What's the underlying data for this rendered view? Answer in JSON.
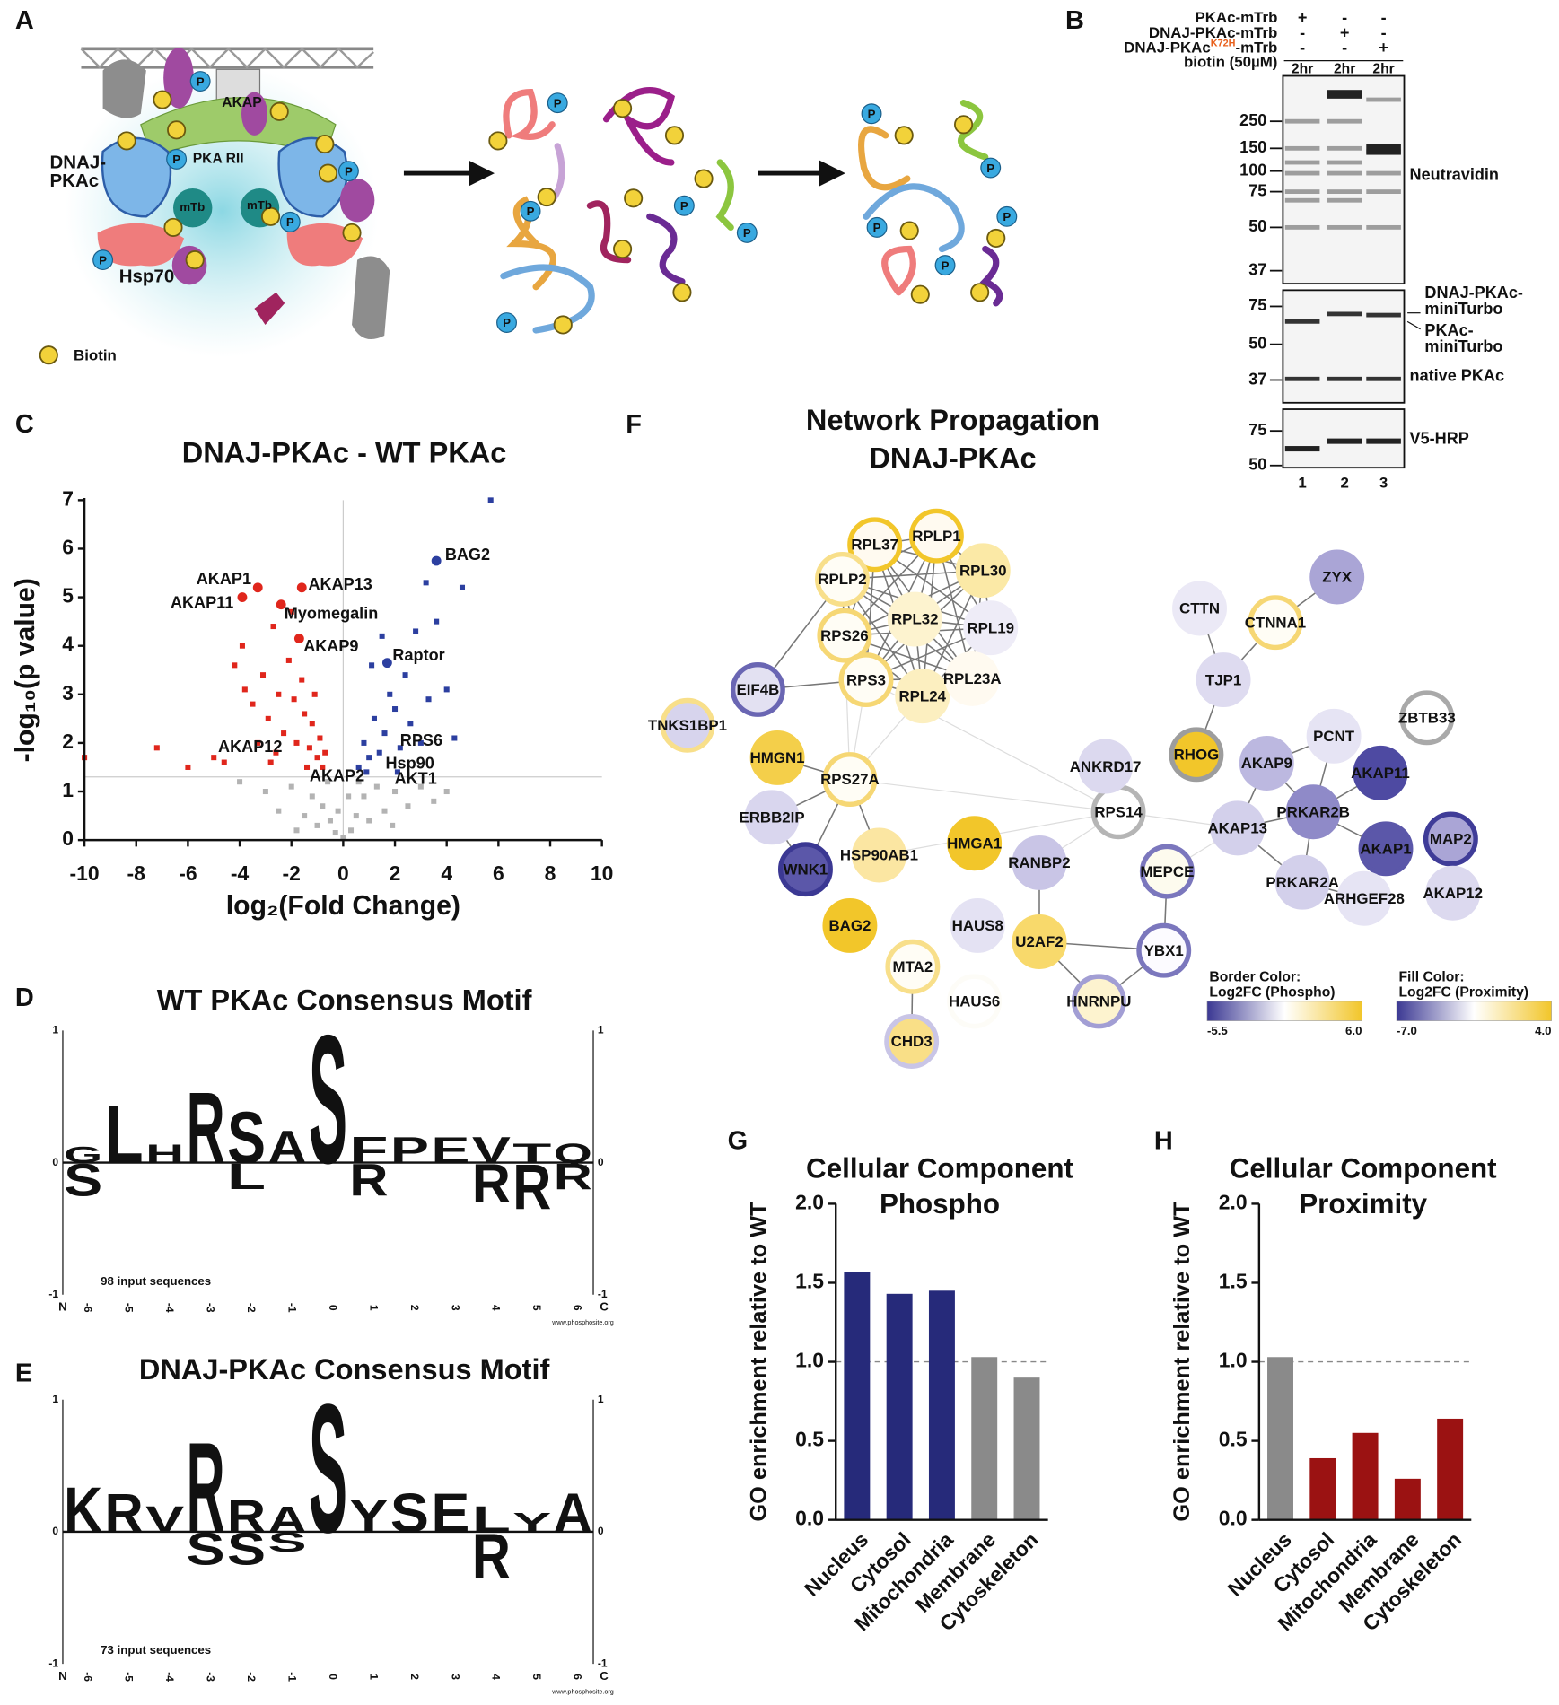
{
  "panel_labels": [
    "A",
    "B",
    "C",
    "D",
    "E",
    "F",
    "G",
    "H"
  ],
  "panel_a": {
    "akap": "AKAP",
    "pka_rii": "PKA RII",
    "dnaj_pkac": [
      "DNAJ-",
      "PKAc"
    ],
    "hsp70": "Hsp70",
    "mtb": "mTb",
    "biotin": "Biotin",
    "phospho": "P"
  },
  "panel_b": {
    "conditions": [
      {
        "label": "PKAc-mTrb",
        "signs": [
          "+",
          "-",
          "-"
        ]
      },
      {
        "label": "DNAJ-PKAc-mTrb",
        "signs": [
          "-",
          "+",
          "-"
        ]
      },
      {
        "label_parts": [
          "DNAJ-PKAc",
          "K72H",
          "-mTrb"
        ],
        "signs": [
          "-",
          "-",
          "+"
        ]
      }
    ],
    "biotin": {
      "label": "biotin (50µM)",
      "times": [
        "2hr",
        "2hr",
        "2hr"
      ]
    },
    "blots": [
      {
        "markers": [
          "250",
          "150",
          "100",
          "75",
          "50",
          "37"
        ],
        "label": "Neutravidin"
      },
      {
        "markers": [
          "75",
          "50",
          "37"
        ],
        "fusion_label": [
          "DNAJ-PKAc-",
          "miniTurbo"
        ],
        "wt_label": [
          "PKAc-",
          "miniTurbo"
        ],
        "label": "native PKAc"
      },
      {
        "markers": [
          "75",
          "50"
        ],
        "label": "V5-HRP"
      }
    ],
    "lanes": [
      "1",
      "2",
      "3"
    ]
  },
  "panel_d": {
    "title": "WT PKAc Consensus Motif",
    "n_label": "N",
    "c_label": "C",
    "axis": [
      "1",
      "0",
      "-1"
    ],
    "positions": [
      -6,
      -5,
      -4,
      -3,
      -2,
      -1,
      0,
      1,
      2,
      3,
      4,
      5,
      6
    ],
    "note": "98 input sequences",
    "source": "www.phosphosite.org",
    "letters": [
      {
        "letter": "G",
        "position": -6,
        "height": 0.12,
        "color": "#2ca02c"
      },
      {
        "letter": "L",
        "position": -5,
        "height": 0.45,
        "color": "#111111"
      },
      {
        "letter": "H",
        "position": -4,
        "height": 0.14,
        "color": "#2f3b9c"
      },
      {
        "letter": "R",
        "position": -3,
        "height": 0.55,
        "color": "#2f3b9c"
      },
      {
        "letter": "S",
        "position": -2,
        "height": 0.4,
        "color": "#2ca02c"
      },
      {
        "letter": "A",
        "position": -1,
        "height": 0.25,
        "color": "#111111"
      },
      {
        "letter": "S",
        "position": 0,
        "height": 1.0,
        "color": "#2ca02c"
      },
      {
        "letter": "F",
        "position": 1,
        "height": 0.2,
        "color": "#111111"
      },
      {
        "letter": "P",
        "position": 2,
        "height": 0.2,
        "color": "#111111"
      },
      {
        "letter": "E",
        "position": 3,
        "height": 0.2,
        "color": "#d62728"
      },
      {
        "letter": "V",
        "position": 4,
        "height": 0.2,
        "color": "#111111"
      },
      {
        "letter": "T",
        "position": 5,
        "height": 0.15,
        "color": "#2ca02c"
      },
      {
        "letter": "Q",
        "position": 6,
        "height": 0.15,
        "color": "#9b1f8a"
      },
      {
        "letter": "S",
        "position": -6,
        "height": -0.25,
        "color": "#2ca02c"
      },
      {
        "letter": "L",
        "position": -2,
        "height": -0.2,
        "color": "#111111"
      },
      {
        "letter": "R",
        "position": 1,
        "height": -0.25,
        "color": "#2f3b9c"
      },
      {
        "letter": "R",
        "position": 4,
        "height": -0.3,
        "color": "#2f3b9c"
      },
      {
        "letter": "R",
        "position": 5,
        "height": -0.35,
        "color": "#2f3b9c"
      },
      {
        "letter": "R",
        "position": 6,
        "height": -0.2,
        "color": "#2f3b9c"
      }
    ]
  },
  "panel_e": {
    "title": "DNAJ-PKAc Consensus Motif",
    "n_label": "N",
    "c_label": "C",
    "axis": [
      "1",
      "0",
      "-1"
    ],
    "positions": [
      -6,
      -5,
      -4,
      -3,
      -2,
      -1,
      0,
      1,
      2,
      3,
      4,
      5,
      6
    ],
    "note": "73 input sequences",
    "source": "www.phosphosite.org",
    "letters": [
      {
        "letter": "K",
        "position": -6,
        "height": 0.35,
        "color": "#2f3b9c"
      },
      {
        "letter": "R",
        "position": -5,
        "height": 0.3,
        "color": "#2f3b9c"
      },
      {
        "letter": "V",
        "position": -4,
        "height": 0.2,
        "color": "#111111"
      },
      {
        "letter": "R",
        "position": -3,
        "height": 0.7,
        "color": "#2f3b9c"
      },
      {
        "letter": "R",
        "position": -2,
        "height": 0.25,
        "color": "#2f3b9c"
      },
      {
        "letter": "A",
        "position": -1,
        "height": 0.2,
        "color": "#111111"
      },
      {
        "letter": "S",
        "position": 0,
        "height": 1.0,
        "color": "#2ca02c"
      },
      {
        "letter": "Y",
        "position": 1,
        "height": 0.25,
        "color": "#2ca02c"
      },
      {
        "letter": "S",
        "position": 2,
        "height": 0.3,
        "color": "#2ca02c"
      },
      {
        "letter": "E",
        "position": 3,
        "height": 0.3,
        "color": "#d62728"
      },
      {
        "letter": "L",
        "position": 4,
        "height": 0.2,
        "color": "#111111"
      },
      {
        "letter": "Y",
        "position": 5,
        "height": 0.15,
        "color": "#111111"
      },
      {
        "letter": "A",
        "position": 6,
        "height": 0.3,
        "color": "#111111"
      },
      {
        "letter": "S",
        "position": -3,
        "height": -0.25,
        "color": "#2ca02c"
      },
      {
        "letter": "S",
        "position": -2,
        "height": -0.25,
        "color": "#2ca02c"
      },
      {
        "letter": "S",
        "position": -1,
        "height": -0.15,
        "color": "#2ca02c"
      },
      {
        "letter": "R",
        "position": 4,
        "height": -0.35,
        "color": "#2f3b9c"
      }
    ]
  },
  "panel_f": {
    "title": [
      "Network Propagation",
      "DNAJ-PKAc"
    ],
    "nodes": [
      {
        "label": "RPL37",
        "fill": "#fffaf0",
        "border": "#f2c62a"
      },
      {
        "label": "RPLP1",
        "fill": "#fffaf0",
        "border": "#f2c62a"
      },
      {
        "label": "RPL30",
        "fill": "#fbe9a6",
        "border": "#fbe9a6"
      },
      {
        "label": "RPLP2",
        "fill": "#fffdf5",
        "border": "#f8df8a"
      },
      {
        "label": "RPL32",
        "fill": "#fdf3cf",
        "border": "#fdf3cf"
      },
      {
        "label": "RPL19",
        "fill": "#eeecf7",
        "border": "#eeecf7"
      },
      {
        "label": "RPS26",
        "fill": "#fffdf5",
        "border": "#f6d774"
      },
      {
        "label": "RPS3",
        "fill": "#fffdf5",
        "border": "#f6d774"
      },
      {
        "label": "RPL24",
        "fill": "#fcefc0",
        "border": "#fcefc0"
      },
      {
        "label": "RPL23A",
        "fill": "#fffaf0",
        "border": "#fffaf0"
      },
      {
        "label": "EIF4B",
        "fill": "#e3e1f2",
        "border": "#6a66b3"
      },
      {
        "label": "TNKS1BP1",
        "fill": "#d7d4ed",
        "border": "#f8df8a"
      },
      {
        "label": "HMGN1",
        "fill": "#f4cf4a",
        "border": "#f4cf4a"
      },
      {
        "label": "RPS27A",
        "fill": "#fffdf5",
        "border": "#f6d774"
      },
      {
        "label": "ERBB2IP",
        "fill": "#d9d6ee",
        "border": "#d9d6ee"
      },
      {
        "label": "HSP90AB1",
        "fill": "#fbe6a2",
        "border": "#fbe6a2"
      },
      {
        "label": "WNK1",
        "fill": "#5b57a9",
        "border": "#3b3893"
      },
      {
        "label": "BAG2",
        "fill": "#f2c62a",
        "border": "#f2c62a"
      },
      {
        "label": "HMGA1",
        "fill": "#f2c62a",
        "border": "#f2c62a"
      },
      {
        "label": "RANBP2",
        "fill": "#c9c5e6",
        "border": "#c9c5e6"
      },
      {
        "label": "HAUS8",
        "fill": "#e4e2f3",
        "border": "#e4e2f3"
      },
      {
        "label": "HAUS6",
        "fill": "#ffffff",
        "border": "#fdfcf7"
      },
      {
        "label": "MTA2",
        "fill": "#fffdf5",
        "border": "#f8df8a"
      },
      {
        "label": "CHD3",
        "fill": "#f9df87",
        "border": "#c9c5e6"
      },
      {
        "label": "U2AF2",
        "fill": "#f8d96b",
        "border": "#f8d96b"
      },
      {
        "label": "HNRNPU",
        "fill": "#fdf3cf",
        "border": "#a29ed4"
      },
      {
        "label": "YBX1",
        "fill": "#fcfbff",
        "border": "#7b77bd"
      },
      {
        "label": "MEPCE",
        "fill": "#fdfbee",
        "border": "#7b77bd"
      },
      {
        "label": "RPS14",
        "fill": "#ffffff",
        "border": "#b5b5b5"
      },
      {
        "label": "ANKRD17",
        "fill": "#dcd9ef",
        "border": "#dcd9ef"
      },
      {
        "label": "CTTN",
        "fill": "#ebe9f6",
        "border": "#ebe9f6"
      },
      {
        "label": "CTNNA1",
        "fill": "#fffdf5",
        "border": "#f6d774"
      },
      {
        "label": "ZYX",
        "fill": "#aaa5d6",
        "border": "#aaa5d6"
      },
      {
        "label": "TJP1",
        "fill": "#dedbf0",
        "border": "#dedbf0"
      },
      {
        "label": "RHOG",
        "fill": "#f2c62a",
        "border": "#9d9d9d"
      },
      {
        "label": "PCNT",
        "fill": "#e6e4f4",
        "border": "#e6e4f4"
      },
      {
        "label": "ZBTB33",
        "fill": "#ffffff",
        "border": "#a9a9a9"
      },
      {
        "label": "AKAP9",
        "fill": "#bcb8e0",
        "border": "#bcb8e0"
      },
      {
        "label": "AKAP11",
        "fill": "#4e4aa2",
        "border": "#4e4aa2"
      },
      {
        "label": "MAP2",
        "fill": "#aaa5d6",
        "border": "#3f3c98"
      },
      {
        "label": "AKAP13",
        "fill": "#d3d0eb",
        "border": "#d3d0eb"
      },
      {
        "label": "PRKAR2B",
        "fill": "#8f8ac8",
        "border": "#8f8ac8"
      },
      {
        "label": "AKAP1",
        "fill": "#5b57a9",
        "border": "#5b57a9"
      },
      {
        "label": "PRKAR2A",
        "fill": "#d3d0eb",
        "border": "#d3d0eb"
      },
      {
        "label": "ARHGEF28",
        "fill": "#e6e4f4",
        "border": "#e6e4f4"
      },
      {
        "label": "AKAP12",
        "fill": "#dcd9ef",
        "border": "#dcd9ef"
      }
    ],
    "legend_border": {
      "title": [
        "Border Color:",
        "Log2FC (Phospho)"
      ],
      "min": "-5.5",
      "max": "6.0",
      "colors": [
        "#3b3893",
        "#ffffff",
        "#f2c62a"
      ]
    },
    "legend_fill": {
      "title": [
        "Fill Color:",
        "Log2FC (Proximity)"
      ],
      "min": "-7.0",
      "max": "4.0",
      "colors": [
        "#3b3893",
        "#ffffff",
        "#f2c62a"
      ]
    }
  },
  "chart_data": [
    {
      "type": "scatter",
      "title": "DNAJ-PKAc - WT PKAc",
      "x_label": "log₂(Fold Change)",
      "y_label": "-log₁₀(p value)",
      "xlim": [
        -10,
        10
      ],
      "ylim": [
        0,
        7
      ],
      "xticks": [
        -10,
        -8,
        -6,
        -4,
        -2,
        0,
        2,
        4,
        6,
        8,
        10
      ],
      "yticks": [
        0,
        1,
        2,
        3,
        4,
        5,
        6,
        7
      ],
      "threshold": 1.3,
      "series": [
        {
          "color": "#e0261c",
          "x": [
            -4.2,
            -3.8,
            -3.5,
            -3.1,
            -2.9,
            -2.7,
            -2.5,
            -2.3,
            -2.1,
            -1.9,
            -1.8,
            -1.6,
            -1.5,
            -1.3,
            -1.2,
            -1.0,
            -0.9,
            -0.8,
            -2.6,
            -3.3,
            -4.6,
            -5.0,
            -7.2,
            -6.0,
            -3.9,
            -2.0,
            -1.4,
            -2.8,
            -0.7,
            -1.1,
            -10
          ],
          "values": [
            3.6,
            3.1,
            2.8,
            3.4,
            2.5,
            4.4,
            3.0,
            2.2,
            3.7,
            2.9,
            2.0,
            3.3,
            2.6,
            1.9,
            2.4,
            1.7,
            2.1,
            1.5,
            1.8,
            2.0,
            1.6,
            1.7,
            1.9,
            1.5,
            4.0,
            4.7,
            1.5,
            1.6,
            1.8,
            3.0,
            1.7
          ]
        },
        {
          "color": "#2c3fa0",
          "x": [
            0.6,
            0.8,
            1.0,
            1.2,
            1.4,
            1.6,
            1.8,
            2.0,
            2.2,
            2.4,
            2.6,
            2.8,
            3.0,
            3.3,
            3.6,
            4.0,
            4.3,
            4.6,
            5.7,
            1.1,
            1.5,
            2.1,
            0.9,
            3.2
          ],
          "values": [
            1.5,
            2.0,
            1.7,
            2.5,
            1.8,
            2.2,
            3.0,
            2.7,
            1.9,
            3.4,
            2.4,
            4.3,
            2.0,
            2.9,
            4.5,
            3.1,
            2.1,
            5.2,
            7.0,
            3.6,
            4.2,
            1.4,
            1.4,
            5.3
          ]
        },
        {
          "color": "#b3b3b3",
          "x": [
            -3.0,
            -2.5,
            -2.0,
            -1.5,
            -1.2,
            -1.0,
            -0.8,
            -0.5,
            -0.3,
            0,
            0.3,
            0.5,
            0.8,
            1.0,
            1.3,
            1.6,
            2.0,
            2.5,
            3.0,
            3.5,
            4.0,
            -4.0,
            -0.2,
            0.2,
            -0.6,
            0.6,
            1.9,
            -1.8
          ],
          "values": [
            1.0,
            0.6,
            1.1,
            0.5,
            0.9,
            0.3,
            0.7,
            0.4,
            0.15,
            0.05,
            0.2,
            0.5,
            0.9,
            0.4,
            1.1,
            0.6,
            1.0,
            0.7,
            1.1,
            0.8,
            1.0,
            1.2,
            0.6,
            0.9,
            1.2,
            1.2,
            0.3,
            0.2
          ]
        }
      ],
      "annotations": [
        {
          "text": "BAG2",
          "x": 3.6,
          "y": 5.75,
          "color": "#2c3fa0"
        },
        {
          "text": "AKAP1",
          "x": -3.3,
          "y": 5.2,
          "color": "#e0261c"
        },
        {
          "text": "AKAP11",
          "x": -3.9,
          "y": 5.0,
          "color": "#e0261c"
        },
        {
          "text": "AKAP13",
          "x": -1.6,
          "y": 5.2,
          "color": "#e0261c"
        },
        {
          "text": "Myomegalin",
          "x": -2.4,
          "y": 4.85,
          "color": "#e0261c"
        },
        {
          "text": "AKAP9",
          "x": -1.7,
          "y": 4.15,
          "color": "#e0261c"
        },
        {
          "text": "Raptor",
          "x": 1.7,
          "y": 3.65,
          "color": "#2c3fa0"
        },
        {
          "text": "AKAP12",
          "x": -5.0,
          "y": 1.9
        },
        {
          "text": "RPS6",
          "x": 2.2,
          "y": 2.1
        },
        {
          "text": "Hsp90",
          "x": 1.3,
          "y": 1.6
        },
        {
          "text": "AKAP2",
          "x": -1.3,
          "y": 1.5
        },
        {
          "text": "AKT1",
          "x": 1.9,
          "y": 1.4
        }
      ]
    },
    {
      "type": "bar",
      "title": [
        "Cellular Component",
        "Phospho"
      ],
      "y_label": "GO enrichment relative to WT",
      "categories": [
        "Nucleus",
        "Cytosol",
        "Mitochondria",
        "Membrane",
        "Cytoskeleton"
      ],
      "values": [
        1.57,
        1.43,
        1.45,
        1.03,
        0.9
      ],
      "colors": [
        "#262a7a",
        "#262a7a",
        "#262a7a",
        "#8a8a8a",
        "#8a8a8a"
      ],
      "reference": 1.0,
      "ylim": [
        0,
        2
      ],
      "yticks": [
        {
          "value": 0,
          "label": "0.0"
        },
        {
          "value": 0.5,
          "label": "0.5"
        },
        {
          "value": 1,
          "label": "1.0"
        },
        {
          "value": 1.5,
          "label": "1.5"
        },
        {
          "value": 2,
          "label": "2.0"
        }
      ]
    },
    {
      "type": "bar",
      "title": [
        "Cellular Component",
        "Proximity"
      ],
      "y_label": "GO enrichment relative to WT",
      "categories": [
        "Nucleus",
        "Cytosol",
        "Mitochondria",
        "Membrane",
        "Cytoskeleton"
      ],
      "values": [
        1.03,
        0.39,
        0.55,
        0.26,
        0.64
      ],
      "colors": [
        "#8a8a8a",
        "#9b1212",
        "#9b1212",
        "#9b1212",
        "#9b1212"
      ],
      "reference": 1.0,
      "ylim": [
        0,
        2
      ],
      "yticks": [
        {
          "value": 0,
          "label": "0.0"
        },
        {
          "value": 0.5,
          "label": "0.5"
        },
        {
          "value": 1,
          "label": "1.0"
        },
        {
          "value": 1.5,
          "label": "1.5"
        },
        {
          "value": 2,
          "label": "2.0"
        }
      ]
    }
  ]
}
